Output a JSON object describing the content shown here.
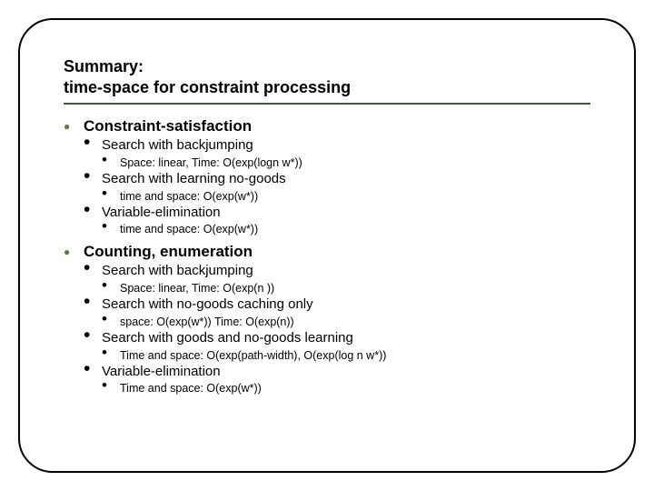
{
  "title_line1": "Summary:",
  "title_line2": "time-space for constraint processing",
  "sections": [
    {
      "heading": "Constraint-satisfaction",
      "items": [
        {
          "label": "Search with backjumping",
          "sub": [
            "Space: linear, Time: O(exp(logn  w*))"
          ]
        },
        {
          "label": "Search with learning no-goods",
          "sub": [
            "time and space: O(exp(w*))"
          ]
        },
        {
          "label": "Variable-elimination",
          "sub": [
            "time and space:  O(exp(w*))"
          ]
        }
      ]
    },
    {
      "heading": "Counting, enumeration",
      "items": [
        {
          "label": "Search with backjumping",
          "sub": [
            "Space: linear, Time: O(exp(n ))"
          ]
        },
        {
          "label": "Search with no-goods caching only",
          "sub": [
            "space:  O(exp(w*))  Time: O(exp(n))"
          ]
        },
        {
          "label": "Search with goods and no-goods learning",
          "sub": [
            "Time and space: O(exp(path-width), O(exp(log n w*))"
          ]
        },
        {
          "label": "Variable-elimination",
          "sub": [
            "Time and space:  O(exp(w*))"
          ]
        }
      ]
    }
  ],
  "colors": {
    "bullet_green": "#5a7a4a",
    "rule_green": "#3a5a3a",
    "text": "#000000",
    "background": "#ffffff"
  },
  "fonts": {
    "title_size_pt": 18,
    "section_size_pt": 17,
    "item_size_pt": 15,
    "subitem_size_pt": 12.5,
    "family": "Arial"
  }
}
